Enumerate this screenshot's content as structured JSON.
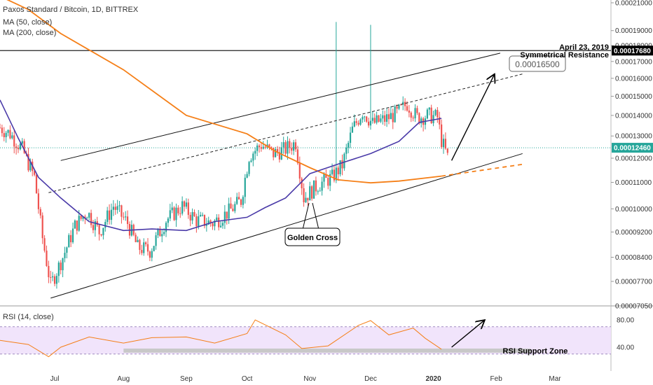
{
  "header": {
    "symbol": "Paxos Standard / Bitcoin, 1D, BITTREX",
    "ma50_label": "MA (50, close)",
    "ma200_label": "MA (200, close)",
    "rsi_label": "RSI (14, close)"
  },
  "annotations": {
    "date_note": "April 23, 2019",
    "resistance_note": "Symmetrical Resistance",
    "target_box": "0.00016500",
    "golden_cross": "Golden Cross",
    "rsi_support": "RSI Support Zone"
  },
  "price_axis": {
    "ticks": [
      "0.00021000",
      "0.00019000",
      "0.00018000",
      "0.00017000",
      "0.00016000",
      "0.00015000",
      "0.00014000",
      "0.00013000",
      "0.00012000",
      "0.00011000",
      "0.00010000",
      "0.00009200",
      "0.00008400",
      "0.00007700",
      "0.00007050"
    ],
    "resistance_label": "0.00017680",
    "last_price_label": "0.00012460"
  },
  "rsi_axis": {
    "ticks": [
      "80.00",
      "40.00"
    ]
  },
  "time_axis": {
    "ticks": [
      "Jul",
      "Aug",
      "Sep",
      "Oct",
      "Nov",
      "Dec",
      "2020",
      "Feb",
      "Mar"
    ]
  },
  "colors": {
    "up": "#26a69a",
    "down": "#ef5350",
    "ma50": "#4a3aa8",
    "ma200": "#f57f17",
    "rsi": "#f57f17",
    "rsi_band": "#efe1fb",
    "support_zone": "#c8c8c8",
    "last_price": "#26a69a",
    "resistance_box": "#000000"
  },
  "chart_data": {
    "type": "candlestick",
    "pair": "PAX/BTC",
    "interval": "1D",
    "exchange": "BITTREX",
    "y_scale": "log",
    "ylim": [
      7.03e-05,
      0.000215
    ],
    "resistance_level": 0.0001768,
    "target_level": 0.000165,
    "last_price": 0.0001246,
    "series": [
      {
        "name": "MA (50, close)",
        "points": [
          [
            "2019-06-01",
            0.000148
          ],
          [
            "2019-06-10",
            0.000129
          ],
          [
            "2019-06-20",
            0.000112
          ],
          [
            "2019-07-01",
            0.000104
          ],
          [
            "2019-07-15",
            9.55e-05
          ],
          [
            "2019-08-01",
            9.25e-05
          ],
          [
            "2019-08-15",
            9.3e-05
          ],
          [
            "2019-09-01",
            9.25e-05
          ],
          [
            "2019-09-15",
            9.55e-05
          ],
          [
            "2019-10-01",
            9.7e-05
          ],
          [
            "2019-10-10",
            0.0001005
          ],
          [
            "2019-10-20",
            0.000104
          ],
          [
            "2019-11-01",
            0.0001135
          ],
          [
            "2019-11-15",
            0.0001175
          ],
          [
            "2019-12-01",
            0.000122
          ],
          [
            "2019-12-15",
            0.0001275
          ],
          [
            "2019-12-25",
            0.0001365
          ],
          [
            "2020-01-05",
            0.0001385
          ]
        ]
      },
      {
        "name": "MA (200, close)",
        "points": [
          [
            "2019-06-01",
            0.000215
          ],
          [
            "2019-06-15",
            0.000205
          ],
          [
            "2019-07-01",
            0.000188
          ],
          [
            "2019-08-01",
            0.000165
          ],
          [
            "2019-09-01",
            0.00014
          ],
          [
            "2019-10-01",
            0.000131
          ],
          [
            "2019-10-15",
            0.000123
          ],
          [
            "2019-11-01",
            0.000116
          ],
          [
            "2019-11-15",
            0.000111
          ],
          [
            "2019-12-01",
            0.0001098
          ],
          [
            "2019-12-15",
            0.0001105
          ],
          [
            "2020-01-05",
            0.0001125
          ]
        ]
      }
    ],
    "rsi": {
      "period": 14,
      "levels": [
        70,
        30
      ],
      "support_zone": [
        32,
        38
      ],
      "points": [
        [
          "2019-06-01",
          50
        ],
        [
          "2019-06-15",
          44
        ],
        [
          "2019-06-25",
          26
        ],
        [
          "2019-07-01",
          40
        ],
        [
          "2019-07-15",
          55
        ],
        [
          "2019-08-01",
          46
        ],
        [
          "2019-08-15",
          54
        ],
        [
          "2019-09-01",
          55
        ],
        [
          "2019-09-15",
          46
        ],
        [
          "2019-10-01",
          60
        ],
        [
          "2019-10-05",
          80
        ],
        [
          "2019-10-20",
          58
        ],
        [
          "2019-10-28",
          38
        ],
        [
          "2019-11-10",
          42
        ],
        [
          "2019-11-25",
          72
        ],
        [
          "2019-12-01",
          79
        ],
        [
          "2019-12-10",
          58
        ],
        [
          "2019-12-22",
          68
        ],
        [
          "2019-12-28",
          53
        ],
        [
          "2020-01-05",
          37
        ]
      ]
    }
  }
}
